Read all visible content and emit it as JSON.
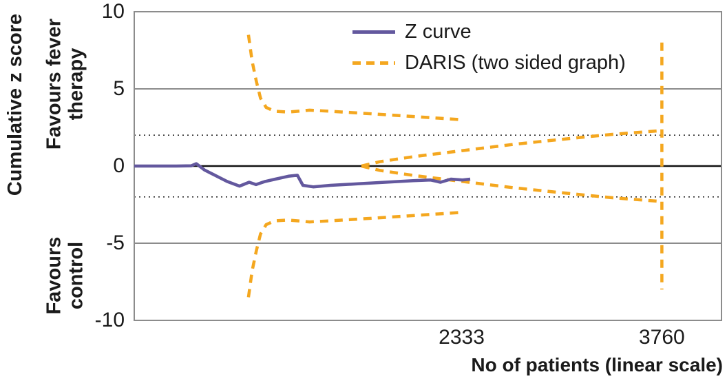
{
  "chart_data": {
    "type": "line",
    "title": "",
    "xlabel": "No of patients (linear scale)",
    "ylabel": "Cumulative z score",
    "annotations": {
      "top": [
        "Favours fever",
        "therapy"
      ],
      "bottom": [
        "Favours",
        "control"
      ]
    },
    "xlim": [
      0,
      4185
    ],
    "ylim": [
      -10,
      10
    ],
    "yticks": [
      {
        "value": 10,
        "label": "10"
      },
      {
        "value": 5,
        "label": "5"
      },
      {
        "value": 0,
        "label": "0"
      },
      {
        "value": -5,
        "label": "-5"
      },
      {
        "value": -10,
        "label": "-10"
      }
    ],
    "xticks": [
      {
        "value": 2333,
        "label": "2333"
      },
      {
        "value": 3760,
        "label": "3760"
      }
    ],
    "grid_z": [
      5,
      -5
    ],
    "reference_z": [
      2,
      -2
    ],
    "zero_line_z": 0,
    "legend_position": "top-center",
    "colors": {
      "z_curve": "#63589e",
      "daris": "#f4a71f",
      "grid": "#8c8c8c",
      "zero_line": "#111111",
      "dotted_reference": "#2b2b2b"
    },
    "series": [
      {
        "name": "Z curve",
        "color": "#63589e",
        "style": "solid",
        "segments": [
          [
            [
              0,
              0
            ],
            [
              300,
              0
            ],
            [
              407,
              0.02
            ],
            [
              442,
              0.15
            ],
            [
              500,
              -0.25
            ],
            [
              564,
              -0.55
            ],
            [
              662,
              -1.0
            ],
            [
              750,
              -1.3
            ],
            [
              819,
              -1.05
            ],
            [
              868,
              -1.2
            ],
            [
              932,
              -1.0
            ],
            [
              1006,
              -0.85
            ],
            [
              1104,
              -0.65
            ],
            [
              1163,
              -0.6
            ],
            [
              1202,
              -1.25
            ],
            [
              1275,
              -1.35
            ],
            [
              1398,
              -1.25
            ],
            [
              1594,
              -1.15
            ],
            [
              1790,
              -1.05
            ],
            [
              1987,
              -0.95
            ],
            [
              2110,
              -0.9
            ],
            [
              2183,
              -1.05
            ],
            [
              2257,
              -0.85
            ],
            [
              2340,
              -0.9
            ],
            [
              2394,
              -0.85
            ]
          ]
        ]
      },
      {
        "name": "DARIS (two sided graph)",
        "color": "#f4a71f",
        "style": "dashed",
        "segments": [
          [
            [
              814,
              8.5
            ],
            [
              840,
              6.8
            ],
            [
              870,
              5.5
            ],
            [
              900,
              4.4
            ],
            [
              940,
              3.8
            ],
            [
              1000,
              3.55
            ],
            [
              1100,
              3.5
            ],
            [
              1250,
              3.62
            ],
            [
              1400,
              3.55
            ],
            [
              1700,
              3.38
            ],
            [
              2000,
              3.2
            ],
            [
              2340,
              3.0
            ]
          ],
          [
            [
              814,
              -8.5
            ],
            [
              840,
              -6.8
            ],
            [
              870,
              -5.5
            ],
            [
              900,
              -4.4
            ],
            [
              940,
              -3.8
            ],
            [
              1000,
              -3.55
            ],
            [
              1100,
              -3.5
            ],
            [
              1250,
              -3.62
            ],
            [
              1400,
              -3.55
            ],
            [
              1700,
              -3.38
            ],
            [
              2000,
              -3.2
            ],
            [
              2340,
              -3.0
            ]
          ],
          [
            [
              1619,
              0
            ],
            [
              1750,
              0.28
            ],
            [
              2000,
              0.62
            ],
            [
              2340,
              1.0
            ],
            [
              2700,
              1.4
            ],
            [
              3100,
              1.78
            ],
            [
              3400,
              2.05
            ],
            [
              3760,
              2.3
            ]
          ],
          [
            [
              1619,
              0
            ],
            [
              1750,
              -0.28
            ],
            [
              2000,
              -0.62
            ],
            [
              2340,
              -1.0
            ],
            [
              2700,
              -1.4
            ],
            [
              3100,
              -1.78
            ],
            [
              3400,
              -2.05
            ],
            [
              3760,
              -2.3
            ]
          ],
          [
            [
              3760,
              8.0
            ],
            [
              3760,
              -8.0
            ]
          ]
        ]
      }
    ]
  }
}
